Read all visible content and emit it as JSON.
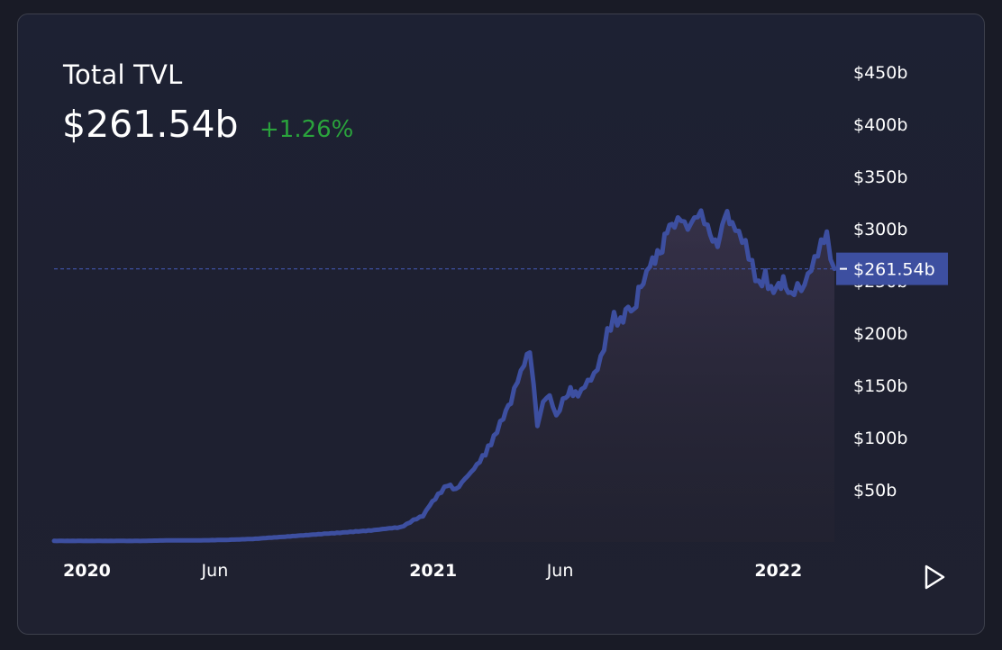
{
  "header": {
    "title": "Total TVL",
    "value": "$261.54b",
    "change": "+1.26%"
  },
  "colors": {
    "line": "#3d4fa0",
    "price_tag": "#3d4fa0",
    "positive": "#2aa33c",
    "axis_text": "#ffffff"
  },
  "chart_data": {
    "type": "area",
    "title": "Total TVL",
    "xlabel": "",
    "ylabel": "",
    "x_ticks": [
      "2020",
      "Jun",
      "2021",
      "Jun",
      "2022"
    ],
    "y_ticks": [
      "$50b",
      "$100b",
      "$150b",
      "$200b",
      "$250b",
      "$300b",
      "$350b",
      "$400b",
      "$450b"
    ],
    "ylim": [
      0,
      450
    ],
    "x_range": [
      "2020-01-01",
      "2022-04-05"
    ],
    "grid": false,
    "current_value_label": "$261.54b",
    "current_value": 261.54,
    "series": [
      {
        "x": [
          "2020-01-01",
          "2020-02-01",
          "2020-03-01",
          "2020-04-01",
          "2020-05-01",
          "2020-06-01",
          "2020-07-01",
          "2020-08-01",
          "2020-08-15",
          "2020-09-01",
          "2020-09-15",
          "2020-10-01",
          "2020-10-15",
          "2020-11-01",
          "2020-11-15",
          "2020-12-01",
          "2020-12-10",
          "2020-12-20",
          "2021-01-01",
          "2021-01-08",
          "2021-01-15",
          "2021-01-25",
          "2021-02-01",
          "2021-02-10",
          "2021-02-20",
          "2021-03-01",
          "2021-03-10",
          "2021-03-20",
          "2021-04-01",
          "2021-04-10",
          "2021-04-20",
          "2021-04-28",
          "2021-05-05",
          "2021-05-12",
          "2021-05-18",
          "2021-05-22",
          "2021-05-26",
          "2021-06-01",
          "2021-06-08",
          "2021-06-15",
          "2021-06-22",
          "2021-06-30",
          "2021-07-08",
          "2021-07-15",
          "2021-07-25",
          "2021-08-01",
          "2021-08-08",
          "2021-08-15",
          "2021-08-22",
          "2021-08-30",
          "2021-09-05",
          "2021-09-10",
          "2021-09-15",
          "2021-09-22",
          "2021-09-30",
          "2021-10-05",
          "2021-10-10",
          "2021-10-18",
          "2021-10-25",
          "2021-11-01",
          "2021-11-08",
          "2021-11-15",
          "2021-11-22",
          "2021-11-30",
          "2021-12-05",
          "2021-12-10",
          "2021-12-18",
          "2021-12-25",
          "2022-01-01",
          "2022-01-08",
          "2022-01-15",
          "2022-01-22",
          "2022-01-28",
          "2022-02-05",
          "2022-02-10",
          "2022-02-18",
          "2022-02-25",
          "2022-03-01",
          "2022-03-08",
          "2022-03-15",
          "2022-03-22",
          "2022-03-28",
          "2022-04-01",
          "2022-04-05"
        ],
        "y": [
          1,
          1,
          1,
          1,
          1.5,
          1.5,
          2,
          3,
          4,
          5,
          6,
          7,
          8,
          9,
          10,
          11,
          12,
          13,
          14,
          17,
          21,
          25,
          35,
          45,
          55,
          50,
          60,
          70,
          85,
          100,
          120,
          135,
          155,
          170,
          185,
          150,
          110,
          135,
          140,
          120,
          135,
          145,
          140,
          150,
          160,
          175,
          200,
          215,
          210,
          225,
          220,
          240,
          250,
          265,
          275,
          280,
          300,
          305,
          310,
          300,
          310,
          315,
          300,
          285,
          290,
          315,
          305,
          295,
          285,
          265,
          245,
          255,
          240,
          245,
          250,
          235,
          245,
          240,
          255,
          270,
          285,
          295,
          275,
          261.54
        ]
      }
    ]
  }
}
